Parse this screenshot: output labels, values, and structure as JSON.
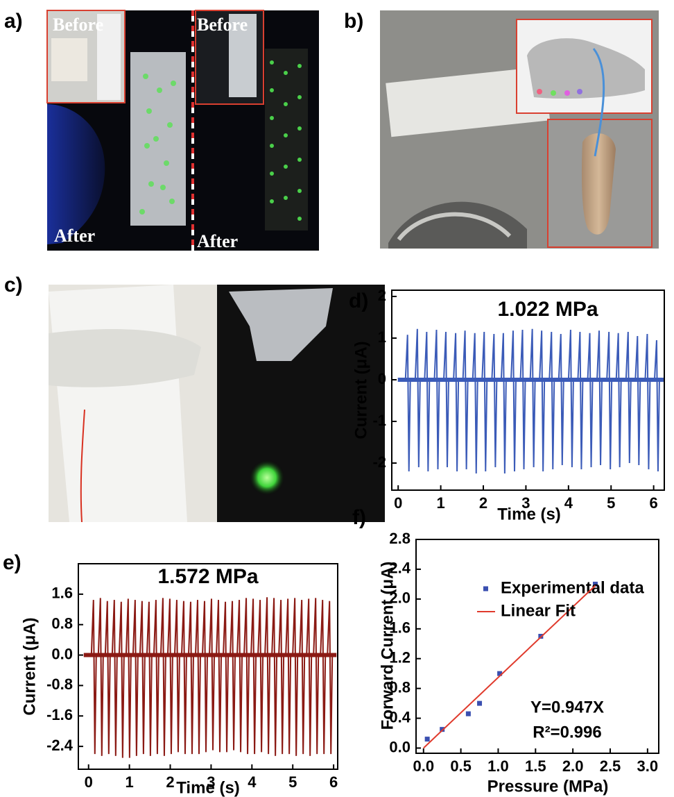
{
  "panels": [
    {
      "label": "a)",
      "texts": [
        "Before",
        "Before",
        "After",
        "After"
      ]
    },
    {
      "label": "b)"
    },
    {
      "label": "c)"
    }
  ],
  "chart_data": [
    {
      "type": "spikes",
      "label": "d)",
      "annotation": "1.022 MPa",
      "xlabel": "Time (s)",
      "ylabel": "Current (μA)",
      "color": "#3b5bb8",
      "xlim": [
        -0.15,
        6.25
      ],
      "ylim": [
        -2.65,
        2.15
      ],
      "xticks": [
        0,
        1,
        2,
        3,
        4,
        5,
        6
      ],
      "yticks": [
        -2,
        -1,
        0,
        1,
        2
      ],
      "x": [
        0.22,
        0.45,
        0.67,
        0.9,
        1.12,
        1.35,
        1.57,
        1.8,
        2.02,
        2.25,
        2.47,
        2.7,
        2.92,
        3.15,
        3.37,
        3.6,
        3.82,
        4.05,
        4.27,
        4.5,
        4.72,
        4.95,
        5.17,
        5.4,
        5.62,
        5.85,
        6.07
      ],
      "highs": [
        1.08,
        1.22,
        1.15,
        1.2,
        1.15,
        1.12,
        1.18,
        1.12,
        1.15,
        1.1,
        1.12,
        1.18,
        1.2,
        1.22,
        1.18,
        1.15,
        1.1,
        1.2,
        1.15,
        1.12,
        1.18,
        1.15,
        1.12,
        1.15,
        1.05,
        1.1,
        0.95
      ],
      "lows": [
        -2.2,
        -2.1,
        -2.2,
        -2.15,
        -2.1,
        -2.2,
        -2.15,
        -2.25,
        -2.2,
        -2.1,
        -2.25,
        -2.2,
        -2.15,
        -2.1,
        -2.2,
        -2.15,
        -2.05,
        -2.1,
        -2.15,
        -2.1,
        -2.05,
        -2.15,
        -2.1,
        -2.0,
        -2.05,
        -2.15,
        -2.2
      ]
    },
    {
      "type": "spikes",
      "label": "e)",
      "annotation": "1.572 MPa",
      "xlabel": "Time (s)",
      "ylabel": "Current (μA)",
      "color": "#8b1a14",
      "xlim": [
        -0.25,
        6.1
      ],
      "ylim": [
        -3.0,
        2.4
      ],
      "xticks": [
        0,
        1,
        2,
        3,
        4,
        5,
        6
      ],
      "yticks": [
        -2.4,
        -1.6,
        -0.8,
        {
          "value": 0,
          "label": "0.0"
        },
        0.8,
        1.6
      ],
      "x": [
        0.12,
        0.29,
        0.46,
        0.63,
        0.8,
        0.97,
        1.14,
        1.31,
        1.48,
        1.65,
        1.82,
        1.99,
        2.16,
        2.33,
        2.5,
        2.67,
        2.84,
        3.01,
        3.18,
        3.35,
        3.52,
        3.69,
        3.86,
        4.03,
        4.2,
        4.37,
        4.54,
        4.71,
        4.88,
        5.05,
        5.22,
        5.39,
        5.56,
        5.73,
        5.9
      ],
      "highs": [
        1.45,
        1.5,
        1.42,
        1.45,
        1.4,
        1.48,
        1.45,
        1.42,
        1.4,
        1.45,
        1.5,
        1.48,
        1.45,
        1.42,
        1.4,
        1.45,
        1.42,
        1.48,
        1.45,
        1.4,
        1.42,
        1.45,
        1.5,
        1.48,
        1.45,
        1.52,
        1.5,
        1.45,
        1.48,
        1.5,
        1.45,
        1.48,
        1.5,
        1.45,
        1.42
      ],
      "lows": [
        -2.6,
        -2.65,
        -2.6,
        -2.65,
        -2.7,
        -2.7,
        -2.65,
        -2.6,
        -2.65,
        -2.6,
        -2.65,
        -2.6,
        -2.55,
        -2.6,
        -2.6,
        -2.6,
        -2.55,
        -2.5,
        -2.55,
        -2.55,
        -2.5,
        -2.55,
        -2.6,
        -2.6,
        -2.55,
        -2.6,
        -2.65,
        -2.6,
        -2.6,
        -2.65,
        -2.6,
        -2.65,
        -2.6,
        -2.6,
        -2.6
      ]
    },
    {
      "type": "scatter",
      "label": "f)",
      "xlabel": "Pressure (MPa)",
      "ylabel": "Forward Current (μA)",
      "annotations": [
        "Y=0.947X",
        "R²=0.996"
      ],
      "xlim": [
        -0.1,
        3.15
      ],
      "ylim": [
        -0.07,
        2.8
      ],
      "xticks": [
        {
          "value": 0,
          "label": "0.0"
        },
        0.5,
        {
          "value": 1,
          "label": "1.0"
        },
        1.5,
        {
          "value": 2,
          "label": "2.0"
        },
        2.5,
        {
          "value": 3,
          "label": "3.0"
        }
      ],
      "yticks": [
        {
          "value": 0,
          "label": "0.0"
        },
        0.4,
        0.8,
        1.2,
        1.6,
        {
          "value": 2,
          "label": "2.0"
        },
        2.4,
        2.8
      ],
      "series": [
        {
          "name": "Experimental data",
          "color": "#3a4fb0",
          "mode": "markers",
          "x": [
            0.05,
            0.25,
            0.6,
            0.75,
            1.02,
            1.57,
            2.3
          ],
          "values": [
            0.12,
            0.25,
            0.46,
            0.6,
            1.0,
            1.5,
            2.2
          ]
        },
        {
          "name": "Linear Fit",
          "color": "#e03a2c",
          "mode": "line",
          "x": [
            0,
            2.3
          ],
          "values": [
            0,
            2.18
          ]
        }
      ]
    }
  ]
}
